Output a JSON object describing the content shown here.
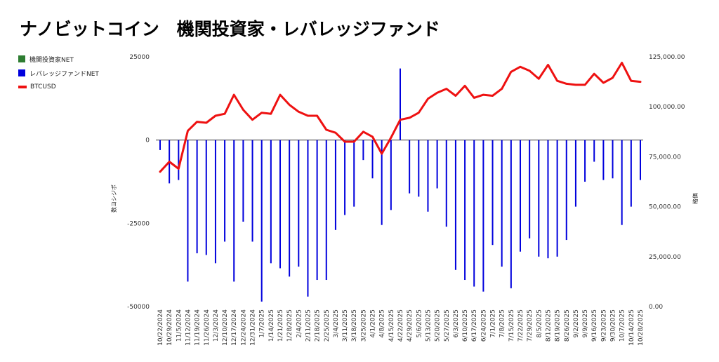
{
  "chart_data": {
    "type": "bar+line",
    "title": "ナノビットコイン　機関投資家・レバレッジファンド",
    "ylabel_left": "数ヨシジポ",
    "ylabel_right": "格価",
    "ylim_left": [
      -50000,
      25000
    ],
    "ylim_right": [
      0,
      125000
    ],
    "yticks_left": [
      "25000",
      "0",
      "-25000",
      "-50000"
    ],
    "yticks_right": [
      "125,000.00",
      "100,000.00",
      "75,000.00",
      "50,000.00",
      "25,000.00",
      "0.00"
    ],
    "legend_position": "left",
    "colors": {
      "inst": "#2e7d32",
      "lev": "#0000dd",
      "btc": "#ee1111"
    },
    "categories": [
      "10/22/2024",
      "10/29/2024",
      "11/5/2024",
      "11/12/2024",
      "11/19/2024",
      "11/26/2024",
      "12/3/2024",
      "12/10/2024",
      "12/17/2024",
      "12/24/2024",
      "12/31/2024",
      "1/7/2025",
      "1/14/2025",
      "1/21/2025",
      "1/28/2025",
      "2/4/2025",
      "2/11/2025",
      "2/18/2025",
      "2/25/2025",
      "3/4/2025",
      "3/11/2025",
      "3/18/2025",
      "3/25/2025",
      "4/1/2025",
      "4/8/2025",
      "4/15/2025",
      "4/22/2025",
      "4/29/2025",
      "5/6/2025",
      "5/13/2025",
      "5/20/2025",
      "5/27/2025",
      "6/3/2025",
      "6/10/2025",
      "6/17/2025",
      "6/24/2025",
      "7/1/2025",
      "7/8/2025",
      "7/15/2025",
      "7/22/2025",
      "7/29/2025",
      "8/5/2025",
      "8/12/2025",
      "8/19/2025",
      "8/26/2025",
      "9/2/2025",
      "9/9/2025",
      "9/16/2025",
      "9/23/2025",
      "9/30/2025",
      "10/7/2025",
      "10/14/2025",
      "10/28/2025"
    ],
    "series": [
      {
        "name": "機関投資家NET",
        "type": "bar",
        "values": [
          0,
          0,
          0,
          0,
          0,
          0,
          0,
          0,
          0,
          0,
          0,
          0,
          0,
          0,
          0,
          0,
          0,
          0,
          0,
          0,
          0,
          0,
          0,
          0,
          0,
          0,
          0,
          0,
          0,
          0,
          0,
          0,
          0,
          0,
          0,
          0,
          0,
          0,
          0,
          0,
          0,
          0,
          0,
          0,
          0,
          0,
          0,
          0,
          0,
          0,
          0,
          0,
          0
        ]
      },
      {
        "name": "レバレッジファンドNET",
        "type": "bar",
        "values": [
          -3000,
          -13000,
          -12000,
          -42500,
          -34000,
          -34500,
          -37000,
          -30500,
          -42500,
          -24500,
          -30500,
          -48500,
          -37000,
          -38500,
          -41000,
          -38000,
          -47000,
          -42000,
          -42000,
          -27000,
          -22500,
          -20000,
          -6000,
          -11500,
          -25500,
          -21000,
          21500,
          -16000,
          -17000,
          -21500,
          -14500,
          -26000,
          -39000,
          -42000,
          -44000,
          -45500,
          -31500,
          -38000,
          -44500,
          -33500,
          -29500,
          -35000,
          -35500,
          -35000,
          -30000,
          -20000,
          -12500,
          -6500,
          -12000,
          -11500,
          -25500,
          -20000,
          -12000
        ]
      },
      {
        "name": "BTCUSD",
        "type": "line",
        "values": [
          67500,
          72500,
          69000,
          88000,
          92500,
          92000,
          95500,
          96500,
          106000,
          98500,
          93500,
          97000,
          96500,
          106000,
          101000,
          97500,
          95500,
          95500,
          88500,
          87000,
          82500,
          82500,
          87500,
          85000,
          76500,
          84500,
          93500,
          94500,
          97000,
          104000,
          107000,
          109000,
          105500,
          110500,
          104500,
          106000,
          105500,
          109000,
          117500,
          120000,
          118000,
          114000,
          121000,
          113000,
          111500,
          111000,
          111000,
          116500,
          112000,
          114500,
          122000,
          113000,
          112500
        ]
      }
    ]
  }
}
